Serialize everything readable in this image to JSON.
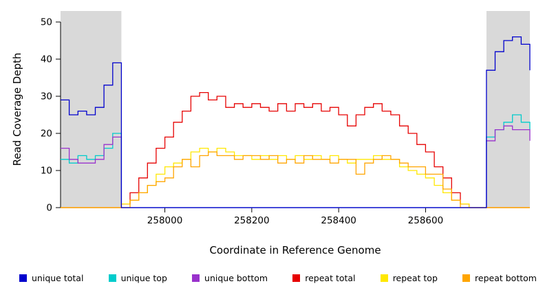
{
  "chart_data": {
    "type": "line",
    "title": "",
    "xlabel": "Coordinate in Reference Genome",
    "ylabel": "Read Coverage Depth",
    "xlim": [
      257760,
      258840
    ],
    "ylim": [
      0,
      50
    ],
    "x_ticks": [
      258000,
      258200,
      258400,
      258600
    ],
    "y_ticks": [
      0,
      10,
      20,
      30,
      40,
      50
    ],
    "grid": false,
    "legend_position": "bottom",
    "axis_color": "#000000",
    "shaded_regions": [
      {
        "name": "left-flank",
        "x0": 257760,
        "x1": 257900,
        "color": "#d9d9d9"
      },
      {
        "name": "right-flank",
        "x0": 258740,
        "x1": 258840,
        "color": "#d9d9d9"
      }
    ],
    "draw_order": [
      1,
      2,
      3,
      4,
      5,
      0
    ],
    "x": [
      257760,
      257780,
      257800,
      257820,
      257840,
      257860,
      257880,
      257900,
      257920,
      257940,
      257960,
      257980,
      258000,
      258020,
      258040,
      258060,
      258080,
      258100,
      258120,
      258140,
      258160,
      258180,
      258200,
      258220,
      258240,
      258260,
      258280,
      258300,
      258320,
      258340,
      258360,
      258380,
      258400,
      258420,
      258440,
      258460,
      258480,
      258500,
      258520,
      258540,
      258560,
      258580,
      258600,
      258620,
      258640,
      258660,
      258680,
      258700,
      258720,
      258740,
      258760,
      258780,
      258800,
      258820,
      258840
    ],
    "series": [
      {
        "name": "unique total",
        "color": "#0000cd",
        "values": [
          29,
          25,
          26,
          25,
          27,
          33,
          39,
          0,
          0,
          0,
          0,
          0,
          0,
          0,
          0,
          0,
          0,
          0,
          0,
          0,
          0,
          0,
          0,
          0,
          0,
          0,
          0,
          0,
          0,
          0,
          0,
          0,
          0,
          0,
          0,
          0,
          0,
          0,
          0,
          0,
          0,
          0,
          0,
          0,
          0,
          0,
          0,
          0,
          0,
          37,
          42,
          45,
          46,
          44,
          37
        ]
      },
      {
        "name": "unique top",
        "color": "#00cccc",
        "values": [
          13,
          12,
          14,
          13,
          14,
          16,
          20,
          0,
          0,
          0,
          0,
          0,
          0,
          0,
          0,
          0,
          0,
          0,
          0,
          0,
          0,
          0,
          0,
          0,
          0,
          0,
          0,
          0,
          0,
          0,
          0,
          0,
          0,
          0,
          0,
          0,
          0,
          0,
          0,
          0,
          0,
          0,
          0,
          0,
          0,
          0,
          0,
          0,
          0,
          19,
          21,
          23,
          25,
          23,
          21
        ]
      },
      {
        "name": "unique bottom",
        "color": "#9932cc",
        "values": [
          16,
          13,
          12,
          12,
          13,
          17,
          19,
          0,
          0,
          0,
          0,
          0,
          0,
          0,
          0,
          0,
          0,
          0,
          0,
          0,
          0,
          0,
          0,
          0,
          0,
          0,
          0,
          0,
          0,
          0,
          0,
          0,
          0,
          0,
          0,
          0,
          0,
          0,
          0,
          0,
          0,
          0,
          0,
          0,
          0,
          0,
          0,
          0,
          0,
          18,
          21,
          22,
          21,
          21,
          18
        ]
      },
      {
        "name": "repeat total",
        "color": "#e60000",
        "values": [
          0,
          0,
          0,
          0,
          0,
          0,
          0,
          1,
          4,
          8,
          12,
          16,
          19,
          23,
          26,
          30,
          31,
          29,
          30,
          27,
          28,
          27,
          28,
          27,
          26,
          28,
          26,
          28,
          27,
          28,
          26,
          27,
          25,
          22,
          25,
          27,
          28,
          26,
          25,
          22,
          20,
          17,
          15,
          11,
          8,
          4,
          1,
          0,
          0,
          0,
          0,
          0,
          0,
          0,
          0
        ]
      },
      {
        "name": "repeat top",
        "color": "#ffe800",
        "values": [
          0,
          0,
          0,
          0,
          0,
          0,
          0,
          1,
          2,
          4,
          6,
          9,
          11,
          12,
          13,
          15,
          16,
          15,
          16,
          15,
          14,
          14,
          13,
          14,
          13,
          14,
          13,
          14,
          13,
          14,
          13,
          14,
          13,
          12,
          13,
          13,
          14,
          13,
          13,
          11,
          10,
          9,
          8,
          6,
          4,
          2,
          1,
          0,
          0,
          0,
          0,
          0,
          0,
          0,
          0
        ]
      },
      {
        "name": "repeat bottom",
        "color": "#ffa500",
        "values": [
          0,
          0,
          0,
          0,
          0,
          0,
          0,
          0,
          2,
          4,
          6,
          7,
          8,
          11,
          13,
          11,
          14,
          15,
          14,
          14,
          13,
          14,
          14,
          13,
          14,
          12,
          13,
          12,
          14,
          13,
          13,
          12,
          13,
          13,
          9,
          12,
          13,
          14,
          13,
          12,
          11,
          11,
          9,
          9,
          5,
          2,
          0,
          0,
          0,
          0,
          0,
          0,
          0,
          0,
          0
        ]
      }
    ]
  }
}
